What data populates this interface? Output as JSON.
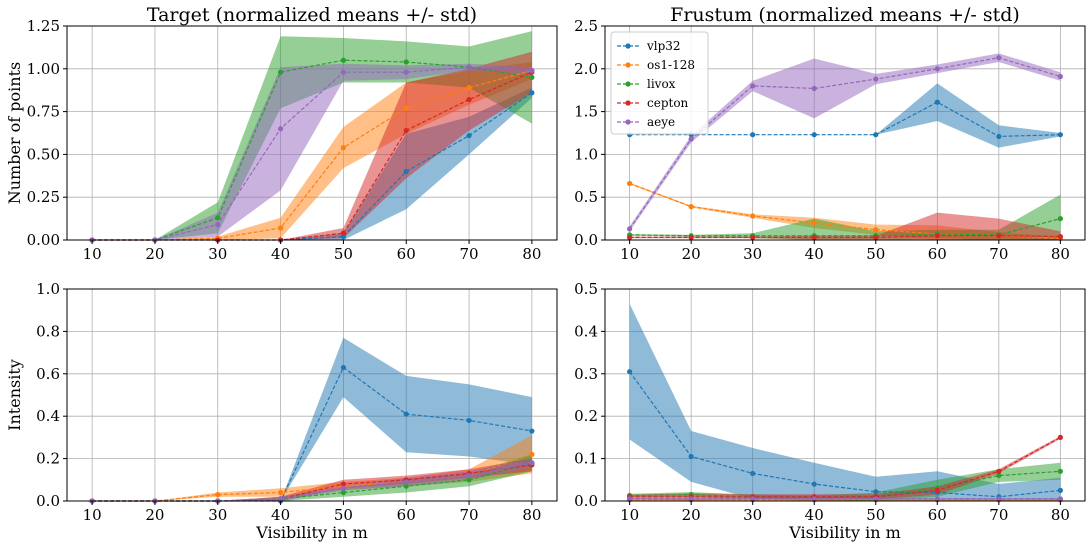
{
  "series_names": [
    "vlp32",
    "os1-128",
    "livox",
    "cepton",
    "aeye"
  ],
  "series_colors": [
    "#1f77b4",
    "#ff7f0e",
    "#2ca02c",
    "#d62728",
    "#9467bd"
  ],
  "chart_data": [
    {
      "type": "line",
      "title": "Target (normalized means +/- std)",
      "xlabel": "",
      "ylabel": "Number of points",
      "x": [
        10,
        20,
        30,
        40,
        50,
        60,
        70,
        80
      ],
      "xlim": [
        6,
        84
      ],
      "ylim": [
        0,
        1.25
      ],
      "yticks": [
        0.0,
        0.25,
        0.5,
        0.75,
        1.0,
        1.25
      ],
      "ytick_labels": [
        "0.00",
        "0.25",
        "0.50",
        "0.75",
        "1.00",
        "1.25"
      ],
      "grid": true,
      "legend": null,
      "series": [
        {
          "name": "vlp32",
          "values": [
            0,
            0,
            0,
            0,
            0.02,
            0.4,
            0.61,
            0.86
          ],
          "std": [
            0,
            0,
            0,
            0,
            0.02,
            0.22,
            0.11,
            0.03
          ]
        },
        {
          "name": "os1-128",
          "values": [
            0,
            0,
            0.01,
            0.07,
            0.54,
            0.77,
            0.89,
            0.99
          ],
          "std": [
            0,
            0,
            0.01,
            0.06,
            0.12,
            0.15,
            0.1,
            0.05
          ]
        },
        {
          "name": "livox",
          "values": [
            0,
            0,
            0.13,
            0.98,
            1.05,
            1.04,
            1.01,
            0.95
          ],
          "std": [
            0,
            0,
            0.09,
            0.21,
            0.13,
            0.12,
            0.12,
            0.27
          ]
        },
        {
          "name": "cepton",
          "values": [
            0,
            0,
            0,
            0,
            0.04,
            0.64,
            0.82,
            0.98
          ],
          "std": [
            0,
            0,
            0,
            0,
            0.03,
            0.28,
            0.18,
            0.12
          ]
        },
        {
          "name": "aeye",
          "values": [
            0,
            0,
            0.09,
            0.65,
            0.98,
            0.98,
            1.01,
            0.99
          ],
          "std": [
            0,
            0,
            0.07,
            0.36,
            0.05,
            0.04,
            0.02,
            0.02
          ]
        }
      ]
    },
    {
      "type": "line",
      "title": "Frustum (normalized means +/- std)",
      "xlabel": "",
      "ylabel": "",
      "x": [
        10,
        20,
        30,
        40,
        50,
        60,
        70,
        80
      ],
      "xlim": [
        6,
        84
      ],
      "ylim": [
        0,
        2.5
      ],
      "yticks": [
        0.0,
        0.5,
        1.0,
        1.5,
        2.0,
        2.5
      ],
      "ytick_labels": [
        "0.0",
        "0.5",
        "1.0",
        "1.5",
        "2.0",
        "2.5"
      ],
      "grid": true,
      "legend": "top-left",
      "series": [
        {
          "name": "vlp32",
          "values": [
            1.23,
            1.23,
            1.23,
            1.23,
            1.23,
            1.61,
            1.21,
            1.23
          ],
          "std": [
            0,
            0,
            0,
            0,
            0,
            0.22,
            0.13,
            0.02
          ]
        },
        {
          "name": "os1-128",
          "values": [
            0.66,
            0.39,
            0.28,
            0.2,
            0.12,
            0.07,
            0.05,
            0.02
          ],
          "std": [
            0.01,
            0.01,
            0.02,
            0.06,
            0.06,
            0.1,
            0.04,
            0.02
          ]
        },
        {
          "name": "livox",
          "values": [
            0.06,
            0.05,
            0.05,
            0.05,
            0.05,
            0.07,
            0.06,
            0.25
          ],
          "std": [
            0.01,
            0.01,
            0.03,
            0.2,
            0.05,
            0.05,
            0.06,
            0.28
          ]
        },
        {
          "name": "cepton",
          "values": [
            0.03,
            0.03,
            0.03,
            0.03,
            0.03,
            0.05,
            0.05,
            0.04
          ],
          "std": [
            0.01,
            0.01,
            0.01,
            0.02,
            0.02,
            0.27,
            0.2,
            0.06
          ]
        },
        {
          "name": "aeye",
          "values": [
            0.13,
            1.18,
            1.8,
            1.77,
            1.88,
            2.0,
            2.13,
            1.91
          ],
          "std": [
            0.03,
            0.04,
            0.06,
            0.35,
            0.06,
            0.05,
            0.05,
            0.05
          ]
        }
      ]
    },
    {
      "type": "line",
      "title": "",
      "xlabel": "Visibility in m",
      "ylabel": "Intensity",
      "x": [
        10,
        20,
        30,
        40,
        50,
        60,
        70,
        80
      ],
      "xlim": [
        6,
        84
      ],
      "ylim": [
        0,
        1.0
      ],
      "yticks": [
        0.0,
        0.2,
        0.4,
        0.6,
        0.8,
        1.0
      ],
      "ytick_labels": [
        "0.0",
        "0.2",
        "0.4",
        "0.6",
        "0.8",
        "1.0"
      ],
      "grid": true,
      "legend": null,
      "series": [
        {
          "name": "vlp32",
          "values": [
            0,
            0,
            0,
            0,
            0.63,
            0.41,
            0.38,
            0.33
          ],
          "std": [
            0,
            0,
            0,
            0,
            0.14,
            0.18,
            0.17,
            0.16
          ]
        },
        {
          "name": "os1-128",
          "values": [
            0,
            0,
            0.03,
            0.04,
            0.07,
            0.09,
            0.12,
            0.22
          ],
          "std": [
            0,
            0,
            0.01,
            0.02,
            0.02,
            0.02,
            0.03,
            0.09
          ]
        },
        {
          "name": "livox",
          "values": [
            0,
            0,
            0,
            0.01,
            0.04,
            0.07,
            0.1,
            0.18
          ],
          "std": [
            0,
            0,
            0,
            0.01,
            0.02,
            0.03,
            0.03,
            0.04
          ]
        },
        {
          "name": "cepton",
          "values": [
            0,
            0,
            0,
            0.01,
            0.08,
            0.1,
            0.13,
            0.17
          ],
          "std": [
            0,
            0,
            0,
            0.01,
            0.02,
            0.02,
            0.02,
            0.03
          ]
        },
        {
          "name": "aeye",
          "values": [
            0,
            0,
            0,
            0.01,
            0.06,
            0.09,
            0.12,
            0.18
          ],
          "std": [
            0,
            0,
            0,
            0.01,
            0.01,
            0.02,
            0.02,
            0.02
          ]
        }
      ]
    },
    {
      "type": "line",
      "title": "",
      "xlabel": "Visibility in m",
      "ylabel": "",
      "x": [
        10,
        20,
        30,
        40,
        50,
        60,
        70,
        80
      ],
      "xlim": [
        6,
        84
      ],
      "ylim": [
        0,
        0.5
      ],
      "yticks": [
        0.0,
        0.1,
        0.2,
        0.3,
        0.4,
        0.5
      ],
      "ytick_labels": [
        "0.0",
        "0.1",
        "0.2",
        "0.3",
        "0.4",
        "0.5"
      ],
      "grid": true,
      "legend": null,
      "series": [
        {
          "name": "vlp32",
          "values": [
            0.305,
            0.105,
            0.065,
            0.04,
            0.022,
            0.02,
            0.01,
            0.025
          ],
          "std": [
            0.16,
            0.06,
            0.06,
            0.05,
            0.035,
            0.05,
            0.03,
            0.03
          ]
        },
        {
          "name": "os1-128",
          "values": [
            0.003,
            0.003,
            0.003,
            0.003,
            0.003,
            0.003,
            0.003,
            0.003
          ],
          "std": [
            0.002,
            0.002,
            0.002,
            0.002,
            0.002,
            0.002,
            0.002,
            0.002
          ]
        },
        {
          "name": "livox",
          "values": [
            0.013,
            0.015,
            0.01,
            0.008,
            0.01,
            0.03,
            0.06,
            0.07
          ],
          "std": [
            0.004,
            0.006,
            0.005,
            0.005,
            0.01,
            0.02,
            0.015,
            0.02
          ]
        },
        {
          "name": "cepton",
          "values": [
            0.01,
            0.01,
            0.01,
            0.01,
            0.01,
            0.025,
            0.07,
            0.15
          ],
          "std": [
            0.005,
            0.008,
            0.006,
            0.006,
            0.006,
            0.01,
            0.005,
            0.003
          ]
        },
        {
          "name": "aeye",
          "values": [
            0.005,
            0.005,
            0.005,
            0.005,
            0.005,
            0.005,
            0.005,
            0.005
          ],
          "std": [
            0.002,
            0.002,
            0.002,
            0.002,
            0.002,
            0.002,
            0.002,
            0.002
          ]
        }
      ]
    }
  ]
}
